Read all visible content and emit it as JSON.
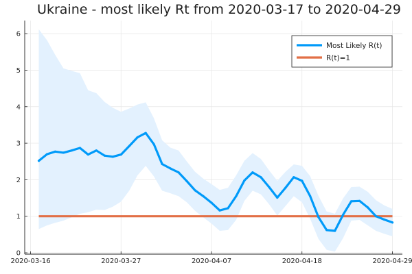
{
  "chart_data": {
    "type": "line",
    "title": "Ukraine - most likely Rt from 2020-03-17 to 2020-04-29",
    "xlabel": "",
    "ylabel": "",
    "x_range": [
      "2020-03-16",
      "2020-04-29"
    ],
    "ylim": [
      0,
      6.35
    ],
    "x_tick_labels": [
      "2020-03-16",
      "2020-03-27",
      "2020-04-07",
      "2020-04-18",
      "2020-04-29"
    ],
    "y_tick_labels": [
      "0",
      "1",
      "2",
      "3",
      "4",
      "5",
      "6"
    ],
    "grid": true,
    "legend_position": "top-right",
    "dates": [
      "2020-03-17",
      "2020-03-18",
      "2020-03-19",
      "2020-03-20",
      "2020-03-21",
      "2020-03-22",
      "2020-03-23",
      "2020-03-24",
      "2020-03-25",
      "2020-03-26",
      "2020-03-27",
      "2020-03-28",
      "2020-03-29",
      "2020-03-30",
      "2020-03-31",
      "2020-04-01",
      "2020-04-02",
      "2020-04-03",
      "2020-04-04",
      "2020-04-05",
      "2020-04-06",
      "2020-04-07",
      "2020-04-08",
      "2020-04-09",
      "2020-04-10",
      "2020-04-11",
      "2020-04-12",
      "2020-04-13",
      "2020-04-14",
      "2020-04-15",
      "2020-04-16",
      "2020-04-17",
      "2020-04-18",
      "2020-04-19",
      "2020-04-20",
      "2020-04-21",
      "2020-04-22",
      "2020-04-23",
      "2020-04-24",
      "2020-04-25",
      "2020-04-26",
      "2020-04-27",
      "2020-04-28",
      "2020-04-29"
    ],
    "series": [
      {
        "name": "Most Likely R(t)",
        "color": "#009af9",
        "values": [
          2.52,
          2.7,
          2.77,
          2.74,
          2.8,
          2.87,
          2.69,
          2.8,
          2.66,
          2.63,
          2.69,
          2.92,
          3.16,
          3.28,
          2.97,
          2.43,
          2.31,
          2.2,
          1.96,
          1.71,
          1.55,
          1.37,
          1.16,
          1.22,
          1.55,
          1.98,
          2.2,
          2.07,
          1.8,
          1.51,
          1.78,
          2.07,
          1.97,
          1.55,
          0.98,
          0.62,
          0.6,
          1.04,
          1.41,
          1.42,
          1.24,
          1.0,
          0.91,
          0.83
        ]
      },
      {
        "name": "R(t)=1",
        "color": "#e26f46",
        "values": [
          1,
          1,
          1,
          1,
          1,
          1,
          1,
          1,
          1,
          1,
          1,
          1,
          1,
          1,
          1,
          1,
          1,
          1,
          1,
          1,
          1,
          1,
          1,
          1,
          1,
          1,
          1,
          1,
          1,
          1,
          1,
          1,
          1,
          1,
          1,
          1,
          1,
          1,
          1,
          1,
          1,
          1,
          1,
          1
        ]
      }
    ],
    "band": {
      "color": "#e3f1fe",
      "low": [
        0.65,
        0.75,
        0.82,
        0.88,
        0.97,
        1.07,
        1.11,
        1.18,
        1.17,
        1.26,
        1.4,
        1.7,
        2.12,
        2.38,
        2.09,
        1.7,
        1.63,
        1.55,
        1.38,
        1.15,
        0.97,
        0.8,
        0.6,
        0.62,
        0.9,
        1.42,
        1.7,
        1.6,
        1.33,
        1.02,
        1.28,
        1.55,
        1.38,
        0.93,
        0.38,
        0.08,
        0.03,
        0.4,
        0.88,
        0.9,
        0.75,
        0.6,
        0.52,
        0.45
      ],
      "high": [
        6.12,
        5.82,
        5.42,
        5.05,
        4.98,
        4.92,
        4.45,
        4.37,
        4.13,
        3.97,
        3.86,
        3.95,
        4.06,
        4.12,
        3.68,
        3.08,
        2.88,
        2.8,
        2.5,
        2.22,
        2.03,
        1.88,
        1.72,
        1.78,
        2.12,
        2.52,
        2.73,
        2.57,
        2.26,
        1.97,
        2.22,
        2.42,
        2.38,
        2.1,
        1.56,
        1.13,
        1.07,
        1.49,
        1.8,
        1.81,
        1.67,
        1.44,
        1.3,
        1.2
      ]
    }
  }
}
